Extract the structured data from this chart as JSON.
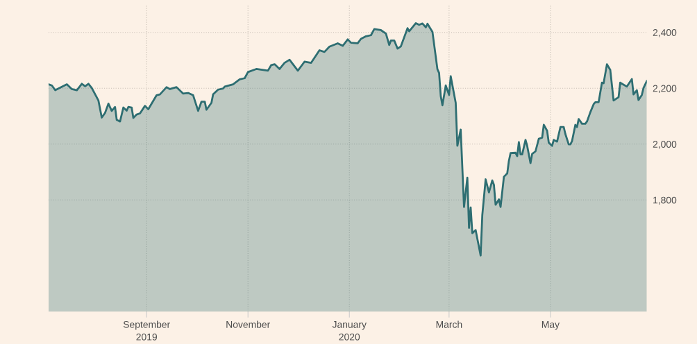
{
  "chart_data": {
    "type": "area",
    "x": [
      "2019-07-04",
      "2019-07-06",
      "2019-07-08",
      "2019-07-15",
      "2019-07-18",
      "2019-07-21",
      "2019-07-24",
      "2019-07-26",
      "2019-07-28",
      "2019-07-30",
      "2019-08-03",
      "2019-08-05",
      "2019-08-07",
      "2019-08-09",
      "2019-08-11",
      "2019-08-13",
      "2019-08-14",
      "2019-08-16",
      "2019-08-18",
      "2019-08-20",
      "2019-08-21",
      "2019-08-23",
      "2019-08-24",
      "2019-08-26",
      "2019-08-28",
      "2019-08-31",
      "2019-09-02",
      "2019-09-07",
      "2019-09-09",
      "2019-09-13",
      "2019-09-15",
      "2019-09-19",
      "2019-09-23",
      "2019-09-26",
      "2019-09-29",
      "2019-10-02",
      "2019-10-04",
      "2019-10-06",
      "2019-10-07",
      "2019-10-10",
      "2019-10-11",
      "2019-10-14",
      "2019-10-17",
      "2019-10-18",
      "2019-10-23",
      "2019-10-27",
      "2019-10-30",
      "2019-11-01",
      "2019-11-06",
      "2019-11-13",
      "2019-11-15",
      "2019-11-17",
      "2019-11-20",
      "2019-11-23",
      "2019-11-26",
      "2019-12-01",
      "2019-12-05",
      "2019-12-09",
      "2019-12-14",
      "2019-12-17",
      "2019-12-20",
      "2019-12-25",
      "2019-12-28",
      "2019-12-31",
      "2020-01-02",
      "2020-01-06",
      "2020-01-08",
      "2020-01-11",
      "2020-01-14",
      "2020-01-16",
      "2020-01-20",
      "2020-01-23",
      "2020-01-25",
      "2020-01-26",
      "2020-01-28",
      "2020-01-30",
      "2020-02-01",
      "2020-02-05",
      "2020-02-06",
      "2020-02-10",
      "2020-02-12",
      "2020-02-14",
      "2020-02-16",
      "2020-02-17",
      "2020-02-20",
      "2020-02-23",
      "2020-02-24",
      "2020-02-25",
      "2020-02-26",
      "2020-02-28",
      "2020-03-01",
      "2020-03-02",
      "2020-03-05",
      "2020-03-06",
      "2020-03-08",
      "2020-03-10",
      "2020-03-12",
      "2020-03-13",
      "2020-03-14",
      "2020-03-15",
      "2020-03-17",
      "2020-03-20",
      "2020-03-21",
      "2020-03-23",
      "2020-03-25",
      "2020-03-27",
      "2020-03-28",
      "2020-03-29",
      "2020-03-31",
      "2020-04-01",
      "2020-04-03",
      "2020-04-05",
      "2020-04-06",
      "2020-04-07",
      "2020-04-10",
      "2020-04-11",
      "2020-04-12",
      "2020-04-13",
      "2020-04-14",
      "2020-04-16",
      "2020-04-17",
      "2020-04-19",
      "2020-04-20",
      "2020-04-22",
      "2020-04-24",
      "2020-04-26",
      "2020-04-27",
      "2020-04-29",
      "2020-04-30",
      "2020-05-02",
      "2020-05-03",
      "2020-05-05",
      "2020-05-07",
      "2020-05-09",
      "2020-05-10",
      "2020-05-12",
      "2020-05-13",
      "2020-05-14",
      "2020-05-16",
      "2020-05-17",
      "2020-05-18",
      "2020-05-20",
      "2020-05-22",
      "2020-05-23",
      "2020-05-25",
      "2020-05-27",
      "2020-05-28",
      "2020-05-30",
      "2020-05-31",
      "2020-06-01",
      "2020-06-02",
      "2020-06-04",
      "2020-06-06",
      "2020-06-08",
      "2020-06-11",
      "2020-06-12",
      "2020-06-16",
      "2020-06-19",
      "2020-06-20",
      "2020-06-22",
      "2020-06-23",
      "2020-06-25",
      "2020-06-26",
      "2020-06-28"
    ],
    "series": [
      {
        "color": "#2e6e72",
        "values": [
          2214,
          2210,
          2193,
          2214,
          2197,
          2193,
          2216,
          2207,
          2216,
          2201,
          2156,
          2095,
          2112,
          2145,
          2119,
          2133,
          2087,
          2081,
          2131,
          2120,
          2133,
          2131,
          2094,
          2106,
          2110,
          2137,
          2125,
          2175,
          2178,
          2204,
          2197,
          2204,
          2181,
          2183,
          2175,
          2119,
          2152,
          2152,
          2123,
          2148,
          2178,
          2195,
          2199,
          2206,
          2214,
          2232,
          2236,
          2258,
          2269,
          2263,
          2283,
          2286,
          2269,
          2291,
          2302,
          2263,
          2295,
          2291,
          2336,
          2330,
          2349,
          2361,
          2352,
          2375,
          2363,
          2361,
          2377,
          2386,
          2390,
          2412,
          2408,
          2396,
          2355,
          2371,
          2371,
          2342,
          2350,
          2415,
          2404,
          2433,
          2427,
          2432,
          2418,
          2431,
          2402,
          2268,
          2255,
          2172,
          2139,
          2210,
          2176,
          2243,
          2148,
          1994,
          2052,
          1775,
          1880,
          1700,
          1773,
          1681,
          1692,
          1601,
          1746,
          1874,
          1827,
          1870,
          1854,
          1783,
          1802,
          1775,
          1883,
          1895,
          1940,
          1968,
          1969,
          1957,
          2007,
          1963,
          1963,
          2015,
          1994,
          1932,
          1965,
          1974,
          2019,
          2023,
          2069,
          2048,
          2005,
          1994,
          2015,
          2009,
          2061,
          2061,
          2036,
          1999,
          1999,
          2011,
          2069,
          2061,
          2090,
          2073,
          2073,
          2081,
          2114,
          2143,
          2150,
          2150,
          2185,
          2220,
          2218,
          2286,
          2266,
          2156,
          2168,
          2220,
          2206,
          2233,
          2178,
          2193,
          2158,
          2176,
          2201,
          2226
        ]
      }
    ],
    "xlim": [
      "2019-07-04",
      "2020-06-28"
    ],
    "xticks": [
      {
        "value": "2019-09-01",
        "label": "September\n2019"
      },
      {
        "value": "2019-11-01",
        "label": "November"
      },
      {
        "value": "2020-01-01",
        "label": "January\n2020"
      },
      {
        "value": "2020-03-01",
        "label": "March"
      },
      {
        "value": "2020-05-01",
        "label": "May"
      }
    ],
    "ylim": [
      1400,
      2500
    ],
    "yticks": [
      {
        "value": 1800,
        "label": "1,800"
      },
      {
        "value": 2000,
        "label": "2,000"
      },
      {
        "value": 2200,
        "label": "2,200"
      },
      {
        "value": 2400,
        "label": "2,400"
      }
    ],
    "grid": true
  }
}
